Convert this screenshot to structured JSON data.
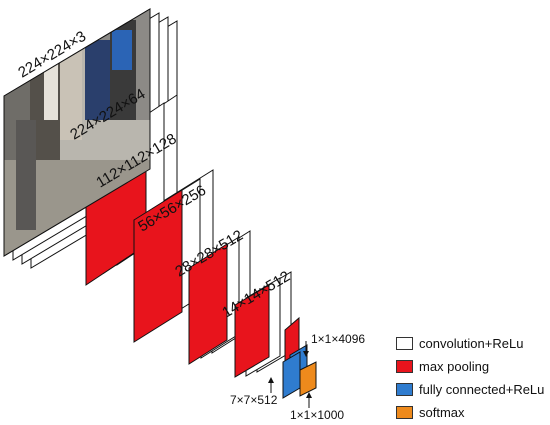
{
  "colors": {
    "conv": "#ffffff",
    "pool": "#e8141c",
    "fc": "#2f7ccf",
    "softmax": "#ee8a1c",
    "stroke": "#111111"
  },
  "input_image": "photo-of-people",
  "layers": [
    {
      "label": "224×224×3",
      "type": "input"
    },
    {
      "label": "224×224×64",
      "type": "conv"
    },
    {
      "label": "112×112×128",
      "type": "pool"
    },
    {
      "label": "56×56×256",
      "type": "pool"
    },
    {
      "label": "28×28×512",
      "type": "pool"
    },
    {
      "label": "14×14×512",
      "type": "pool"
    },
    {
      "label": "7×7×512",
      "type": "pool"
    },
    {
      "label": "1×1×4096",
      "type": "fc"
    },
    {
      "label": "1×1×1000",
      "type": "softmax"
    }
  ],
  "legend": [
    {
      "label": "convolution+ReLu",
      "type": "conv"
    },
    {
      "label": "max pooling",
      "type": "pool"
    },
    {
      "label": "fully connected+ReLu",
      "type": "fc"
    },
    {
      "label": "softmax",
      "type": "softmax"
    }
  ]
}
